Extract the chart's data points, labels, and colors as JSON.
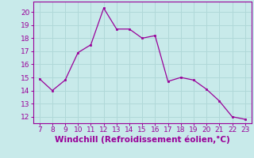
{
  "x": [
    7,
    8,
    9,
    10,
    11,
    12,
    13,
    14,
    15,
    16,
    17,
    18,
    19,
    20,
    21,
    22,
    23
  ],
  "y": [
    14.9,
    14.0,
    14.8,
    16.9,
    17.5,
    20.3,
    18.7,
    18.7,
    18.0,
    18.2,
    14.7,
    15.0,
    14.8,
    14.1,
    13.2,
    12.0,
    11.8
  ],
  "line_color": "#990099",
  "marker_color": "#990099",
  "bg_color": "#c8eaea",
  "grid_color": "#b0d8d8",
  "xlabel": "Windchill (Refroidissement éolien,°C)",
  "xlabel_color": "#990099",
  "ylim": [
    11.5,
    20.8
  ],
  "xlim": [
    6.5,
    23.5
  ],
  "yticks": [
    12,
    13,
    14,
    15,
    16,
    17,
    18,
    19,
    20
  ],
  "xticks": [
    7,
    8,
    9,
    10,
    11,
    12,
    13,
    14,
    15,
    16,
    17,
    18,
    19,
    20,
    21,
    22,
    23
  ],
  "tick_color": "#990099",
  "tick_fontsize": 6.5,
  "xlabel_fontsize": 7.5,
  "spine_color": "#990099"
}
